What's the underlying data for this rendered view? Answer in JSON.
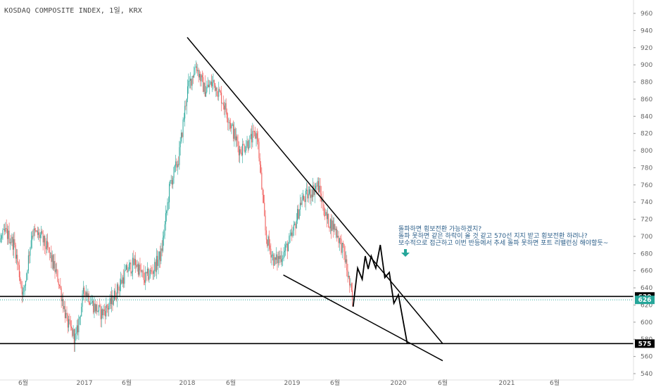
{
  "header": {
    "title": "KOSDAQ COMPOSITE INDEX, 1일, KRX"
  },
  "annotation": {
    "lines": [
      "돌파하면 횡보전환 가능하겠지?",
      "돌파 못하면 같은 하락이 올 것 같고 570선 지지 받고 횡보전환 하려나?",
      "보수적으로 접근하고 이번 반등에서 추세 돌파 못하면 포트 리밸런싱 해야할듯~"
    ],
    "arrow_icon": "down-arrow-icon"
  },
  "colors": {
    "up": "#26a69a",
    "down": "#ef5350",
    "trendline": "#000000",
    "annotation_text": "#2c5f8a",
    "grid": "#ffffff"
  },
  "chart_data": {
    "type": "candlestick",
    "title": "KOSDAQ COMPOSITE INDEX, 1일, KRX",
    "ylim": [
      540,
      970
    ],
    "y_ticks": [
      540,
      560,
      580,
      600,
      620,
      640,
      660,
      680,
      700,
      720,
      740,
      760,
      780,
      800,
      820,
      840,
      860,
      880,
      900,
      920,
      940,
      960
    ],
    "x_ticks": [
      "6월",
      "2017",
      "6월",
      "2018",
      "6월",
      "2019",
      "6월",
      "2020",
      "6월",
      "2021",
      "6월"
    ],
    "price_tags": [
      {
        "label": "630",
        "value": 630,
        "color": "#000000"
      },
      {
        "label": "626",
        "value": 626,
        "color": "#26a69a"
      },
      {
        "label": "575",
        "value": 575,
        "color": "#000000"
      }
    ],
    "price_path": [
      [
        "2016-01",
        690
      ],
      [
        "2016-02",
        700
      ],
      [
        "2016-03",
        690
      ],
      [
        "2016-04",
        705
      ],
      [
        "2016-05",
        690
      ],
      [
        "2016-06",
        630
      ],
      [
        "2016-07",
        705
      ],
      [
        "2016-08",
        700
      ],
      [
        "2016-09",
        680
      ],
      [
        "2016-10",
        650
      ],
      [
        "2016-11",
        600
      ],
      [
        "2016-12",
        580
      ],
      [
        "2017-01",
        640
      ],
      [
        "2017-02",
        620
      ],
      [
        "2017-03",
        610
      ],
      [
        "2017-04",
        620
      ],
      [
        "2017-05",
        640
      ],
      [
        "2017-06",
        660
      ],
      [
        "2017-07",
        670
      ],
      [
        "2017-08",
        650
      ],
      [
        "2017-09",
        660
      ],
      [
        "2017-10",
        680
      ],
      [
        "2017-11",
        760
      ],
      [
        "2017-12",
        790
      ],
      [
        "2018-01",
        870
      ],
      [
        "2018-02",
        900
      ],
      [
        "2018-03",
        870
      ],
      [
        "2018-04",
        880
      ],
      [
        "2018-05",
        860
      ],
      [
        "2018-06",
        830
      ],
      [
        "2018-07",
        800
      ],
      [
        "2018-08",
        810
      ],
      [
        "2018-09",
        820
      ],
      [
        "2018-10",
        700
      ],
      [
        "2018-11",
        670
      ],
      [
        "2018-12",
        680
      ],
      [
        "2019-01",
        700
      ],
      [
        "2019-02",
        740
      ],
      [
        "2019-03",
        750
      ],
      [
        "2019-04",
        760
      ],
      [
        "2019-05",
        720
      ],
      [
        "2019-06",
        710
      ],
      [
        "2019-07",
        680
      ],
      [
        "2019-08",
        620
      ]
    ],
    "projection_path": [
      [
        "2019-08",
        618
      ],
      [
        "2019-08",
        663
      ],
      [
        "2019-09",
        650
      ],
      [
        "2019-09",
        677
      ],
      [
        "2019-09",
        662
      ],
      [
        "2019-10",
        677
      ],
      [
        "2019-10",
        663
      ],
      [
        "2019-11",
        690
      ],
      [
        "2019-11",
        652
      ],
      [
        "2019-12",
        658
      ],
      [
        "2019-12",
        622
      ],
      [
        "2020-01",
        632
      ],
      [
        "2020-02",
        575
      ]
    ],
    "trendlines": [
      {
        "name": "descending-resistance",
        "from": [
          "2018-01",
          932
        ],
        "to": [
          "2020-06",
          575
        ]
      },
      {
        "name": "descending-support",
        "from": [
          "2018-12",
          655
        ],
        "to": [
          "2020-06",
          555
        ]
      }
    ],
    "horizontal_lines": [
      630,
      575
    ]
  }
}
